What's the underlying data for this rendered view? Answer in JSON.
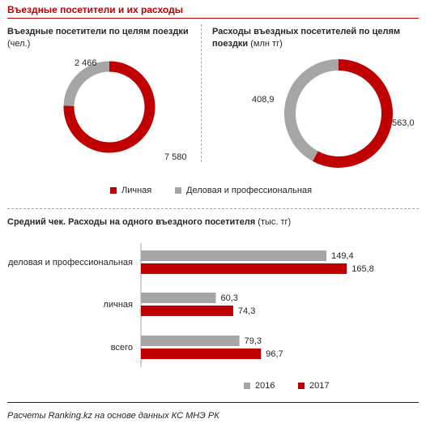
{
  "header": {
    "title": "Въездные посетители и их расходы"
  },
  "colors": {
    "personal": "#c00000",
    "business": "#a6a6a6",
    "accent": "#c00000"
  },
  "legend_pies": {
    "personal": "Личная",
    "business": "Деловая и профессиональная"
  },
  "legend_bars": {
    "y2016": "2016",
    "y2017": "2017"
  },
  "source": "Расчеты Ranking.kz на основе данных КС МНЭ РК",
  "chart_data": [
    {
      "type": "pie",
      "subtype": "donut",
      "title": "Въездные посетители по целям поездки",
      "unit": "(чел.)",
      "slices": [
        {
          "name": "Личная",
          "value": 7580,
          "label": "7 580",
          "color": "#c00000"
        },
        {
          "name": "Деловая и профессиональная",
          "value": 2466,
          "label": "2 466",
          "color": "#a6a6a6"
        }
      ]
    },
    {
      "type": "pie",
      "subtype": "donut",
      "title_line1": "Расходы въездных посетителей по целям",
      "title_line2": "поездки",
      "unit": "(млн тг)",
      "slices": [
        {
          "name": "Личная",
          "value": 563.0,
          "label": "563,0",
          "color": "#c00000"
        },
        {
          "name": "Деловая и профессиональная",
          "value": 408.9,
          "label": "408,9",
          "color": "#a6a6a6"
        }
      ]
    },
    {
      "type": "bar",
      "orientation": "horizontal",
      "title": "Средний чек. Расходы на одного въездного посетителя",
      "unit": "(тыс. тг)",
      "categories": [
        "деловая и профессиональная",
        "личная",
        "всего"
      ],
      "series": [
        {
          "name": "2016",
          "color": "#a6a6a6",
          "values": [
            149.4,
            60.3,
            79.3
          ],
          "labels": [
            "149,4",
            "60,3",
            "79,3"
          ]
        },
        {
          "name": "2017",
          "color": "#c00000",
          "values": [
            165.8,
            74.3,
            96.7
          ],
          "labels": [
            "165,8",
            "74,3",
            "96,7"
          ]
        }
      ],
      "xlim": [
        0,
        180
      ],
      "grid": false,
      "legend": "bottom"
    }
  ]
}
